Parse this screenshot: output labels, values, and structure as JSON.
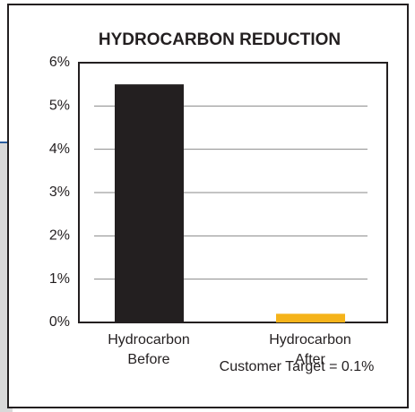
{
  "chart_data": {
    "type": "bar",
    "title": "HYDROCARBON REDUCTION",
    "categories": [
      "Hydrocarbon Before",
      "Hydrocarbon After"
    ],
    "series": [
      {
        "name": null,
        "values": [
          5.5,
          0.2
        ],
        "colors": [
          "#231f20",
          "#f5b31a"
        ]
      }
    ],
    "ylim": [
      0,
      6
    ],
    "yticks": [
      {
        "value": 0,
        "label": "0%"
      },
      {
        "value": 1,
        "label": "1%"
      },
      {
        "value": 2,
        "label": "2%"
      },
      {
        "value": 3,
        "label": "3%"
      },
      {
        "value": 4,
        "label": "4%"
      },
      {
        "value": 5,
        "label": "5%"
      },
      {
        "value": 6,
        "label": "6%"
      }
    ],
    "grid": true,
    "annotation": "Customer Target = 0.1%"
  }
}
